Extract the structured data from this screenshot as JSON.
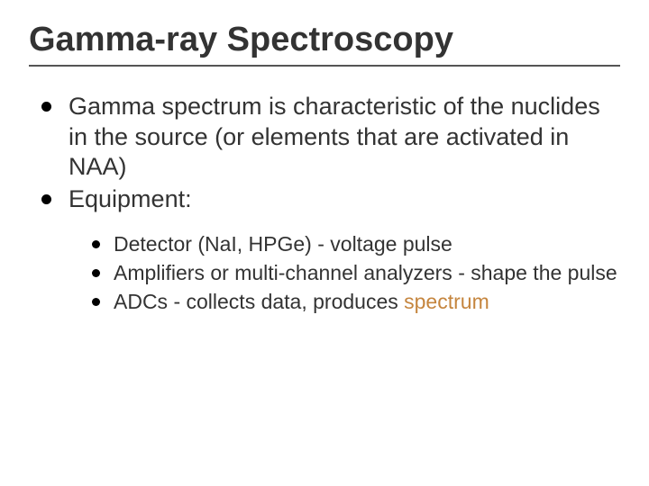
{
  "slide": {
    "title": "Gamma-ray Spectroscopy",
    "title_color": "#333333",
    "title_fontsize": 38,
    "underline_color": "#555555",
    "background_color": "#ffffff",
    "body_color": "#333333",
    "accent_color": "#c5853e",
    "bullet_color": "#000000",
    "level1_fontsize": 27,
    "level2_fontsize": 23,
    "bullets": [
      {
        "text": "Gamma spectrum is characteristic of the nuclides in the source (or elements that are activated in NAA)"
      },
      {
        "text": "Equipment:"
      }
    ],
    "sub_bullets": [
      {
        "text": "Detector (NaI, HPGe) - voltage pulse"
      },
      {
        "text": "Amplifiers or multi-channel analyzers - shape the pulse"
      },
      {
        "prefix": "ADCs - collects data, produces ",
        "accent": "spectrum"
      }
    ]
  }
}
